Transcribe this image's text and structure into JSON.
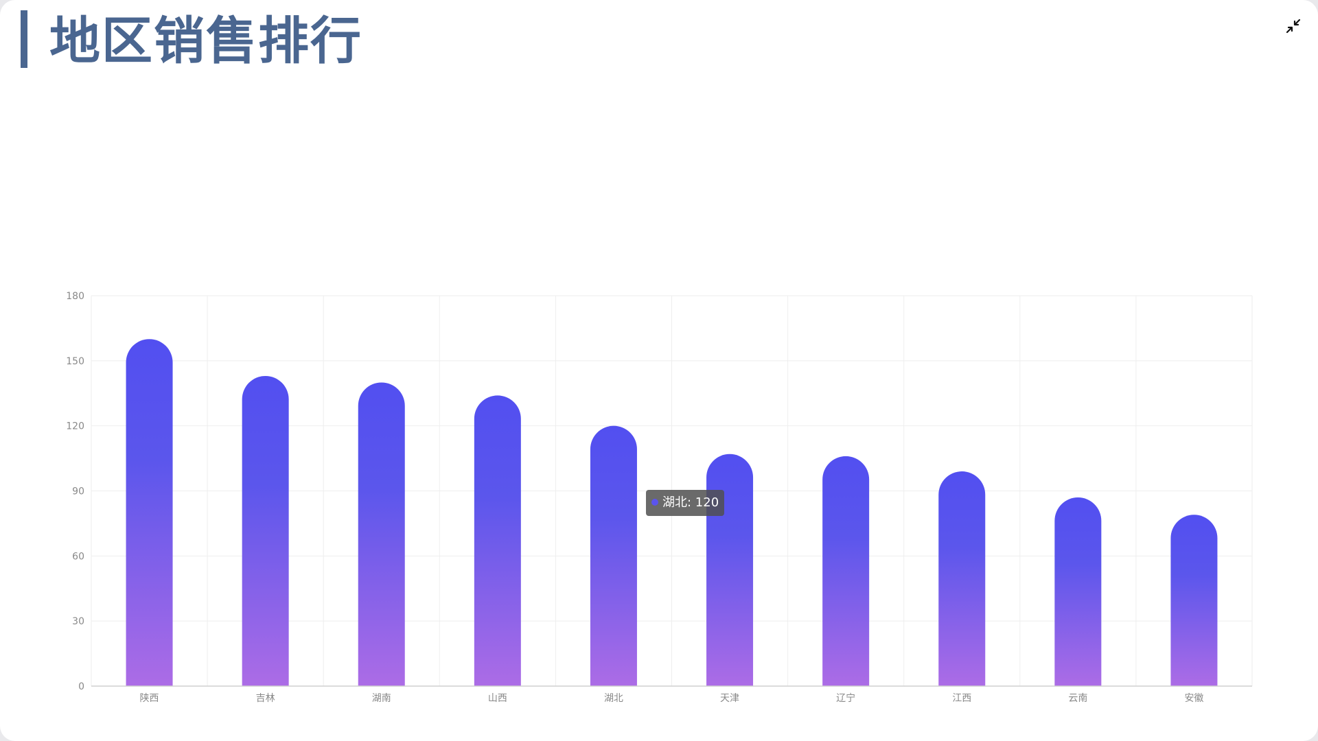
{
  "header": {
    "title": "地区销售排行"
  },
  "icons": {
    "collapse": "collapse-icon"
  },
  "colors": {
    "title": "#4a6690",
    "bar_top": "#524ff0",
    "bar_bottom": "#ac6ce6",
    "axis_text": "#888888",
    "grid": "#eeeeee"
  },
  "tooltip": {
    "label": "湖北: 120"
  },
  "chart_data": {
    "type": "bar",
    "categories": [
      "陕西",
      "吉林",
      "湖南",
      "山西",
      "湖北",
      "天津",
      "辽宁",
      "江西",
      "云南",
      "安徽"
    ],
    "values": [
      160,
      143,
      140,
      134,
      120,
      107,
      106,
      99,
      87,
      79
    ],
    "ylim": [
      0,
      180
    ],
    "yticks": [
      0,
      30,
      60,
      90,
      120,
      150,
      180
    ],
    "grid": true,
    "legend": "none"
  }
}
